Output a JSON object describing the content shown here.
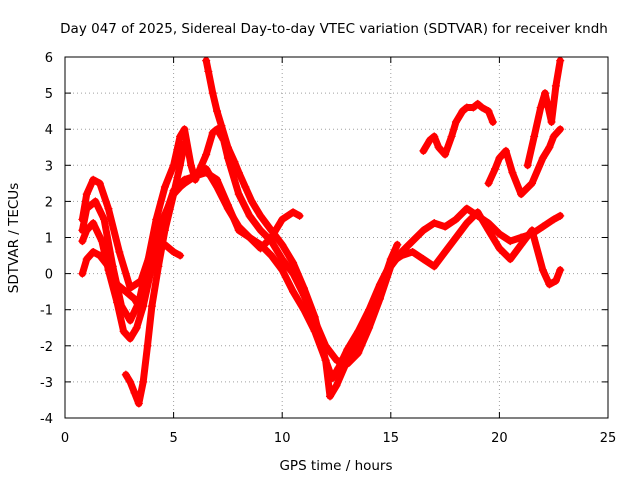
{
  "chart_data": {
    "type": "scatter",
    "title": "Day 047 of 2025, Sidereal Day-to-day VTEC variation (SDTVAR) for receiver kndh",
    "xlabel": "GPS time / hours",
    "ylabel": "SDTVAR / TECUs",
    "xlim": [
      0,
      25
    ],
    "ylim": [
      -4,
      6
    ],
    "xticks": [
      "0",
      "5",
      "10",
      "15",
      "20",
      "25"
    ],
    "yticks": [
      "-4",
      "-3",
      "-2",
      "-1",
      "0",
      "1",
      "2",
      "3",
      "4",
      "5",
      "6"
    ],
    "grid": true,
    "marker": "+",
    "color": "#ff0000",
    "series": [
      {
        "x": [
          0.8,
          1.0,
          1.3,
          1.6,
          2.0,
          2.5,
          3.0,
          3.5,
          4.0,
          4.5,
          5.0,
          5.3,
          5.5,
          6.0,
          6.5,
          7.0,
          7.5,
          8.0,
          8.5,
          9.0,
          9.5,
          10.0,
          10.5,
          10.8
        ],
        "y": [
          1.5,
          2.2,
          2.6,
          2.5,
          1.8,
          0.6,
          -0.4,
          -0.2,
          0.7,
          1.5,
          2.2,
          2.4,
          2.5,
          2.7,
          2.8,
          2.6,
          1.9,
          1.2,
          1.0,
          0.7,
          1.0,
          1.5,
          1.7,
          1.6
        ]
      },
      {
        "x": [
          0.8,
          1.0,
          1.4,
          1.8,
          2.2,
          2.6,
          3.0,
          3.4,
          3.8,
          4.2,
          4.6,
          5.0,
          5.3,
          5.5,
          5.8,
          6.0,
          6.5,
          6.8,
          7.0,
          7.3,
          7.5,
          8.0,
          8.5,
          9.0,
          9.5,
          10.0,
          10.5,
          11.0,
          11.5,
          12.0,
          12.5,
          13.0,
          13.5,
          14.0,
          14.5,
          15.0,
          15.5,
          16.0,
          16.5,
          17.0,
          17.5,
          18.0,
          18.5,
          19.0,
          19.5,
          20.0,
          20.5,
          21.0,
          21.5,
          22.0,
          22.5,
          22.8
        ],
        "y": [
          1.2,
          1.8,
          2.0,
          1.5,
          0.2,
          -0.9,
          -1.3,
          -0.8,
          0.3,
          1.5,
          2.4,
          3.0,
          3.8,
          4.0,
          3.0,
          2.6,
          3.3,
          3.9,
          4.0,
          3.7,
          3.2,
          2.2,
          1.6,
          1.2,
          0.9,
          0.4,
          0.0,
          -0.6,
          -1.3,
          -2.0,
          -2.4,
          -2.5,
          -2.2,
          -1.5,
          -0.7,
          0.2,
          0.6,
          0.9,
          1.2,
          1.4,
          1.3,
          1.5,
          1.8,
          1.6,
          1.4,
          1.1,
          0.9,
          1.0,
          1.1,
          1.3,
          1.5,
          1.6
        ]
      },
      {
        "x": [
          0.8,
          1.0,
          1.3,
          1.7,
          2.0,
          2.4,
          2.7,
          3.0,
          3.3,
          3.6,
          4.0,
          4.5,
          5.0,
          5.5,
          6.0,
          6.5,
          7.0,
          7.5,
          8.0,
          8.5,
          9.0,
          9.5,
          10.0,
          10.5,
          11.0,
          11.5,
          12.0,
          12.3,
          12.6,
          13.0,
          13.5,
          14.0,
          14.5,
          15.0,
          15.5,
          16.0,
          16.5,
          17.0,
          17.5,
          18.0,
          18.5,
          19.0,
          19.5,
          20.0,
          20.5,
          21.0,
          21.5,
          22.0,
          22.3,
          22.6,
          22.8
        ],
        "y": [
          0.9,
          1.2,
          1.4,
          0.9,
          0.1,
          -0.8,
          -1.6,
          -1.8,
          -1.5,
          -0.9,
          0.2,
          1.4,
          2.3,
          2.6,
          2.7,
          2.9,
          2.4,
          1.8,
          1.3,
          1.0,
          0.8,
          0.5,
          0.1,
          -0.5,
          -1.0,
          -1.6,
          -2.4,
          -2.9,
          -2.6,
          -2.1,
          -1.6,
          -1.0,
          -0.3,
          0.3,
          0.5,
          0.6,
          0.4,
          0.2,
          0.6,
          1.0,
          1.4,
          1.7,
          1.2,
          0.7,
          0.4,
          0.8,
          1.2,
          0.1,
          -0.3,
          -0.2,
          0.1
        ]
      },
      {
        "x": [
          0.8,
          1.0,
          1.3,
          1.6,
          2.0,
          2.4,
          2.8,
          3.0,
          3.2,
          3.4,
          3.6,
          3.8,
          4.0,
          4.3,
          4.6,
          5.0,
          5.3
        ],
        "y": [
          0.0,
          0.4,
          0.6,
          0.5,
          0.2,
          -0.3,
          -0.5,
          -0.6,
          -0.7,
          -0.9,
          -0.6,
          -0.1,
          0.5,
          0.7,
          0.8,
          0.6,
          0.5
        ]
      },
      {
        "x": [
          2.8,
          3.0,
          3.2,
          3.4,
          3.6,
          3.8,
          4.0,
          4.3,
          4.6,
          5.0,
          5.3,
          5.5
        ],
        "y": [
          -2.8,
          -3.0,
          -3.3,
          -3.6,
          -3.0,
          -2.0,
          -0.9,
          0.2,
          1.2,
          2.2,
          3.0,
          3.6
        ]
      },
      {
        "x": [
          6.5,
          6.6,
          6.8,
          7.0,
          7.2,
          7.5,
          7.8,
          8.0,
          8.3,
          8.6,
          9.0,
          9.5,
          10.0,
          10.5,
          11.0,
          11.5,
          12.0,
          12.2,
          12.5,
          13.0,
          13.5,
          14.0,
          14.5,
          15.0,
          15.3
        ],
        "y": [
          5.9,
          5.6,
          5.0,
          4.5,
          4.1,
          3.5,
          3.1,
          2.8,
          2.4,
          2.0,
          1.6,
          1.2,
          0.8,
          0.3,
          -0.4,
          -1.2,
          -2.4,
          -3.4,
          -3.1,
          -2.4,
          -1.8,
          -1.1,
          -0.5,
          0.4,
          0.8
        ]
      },
      {
        "x": [
          16.5,
          16.8,
          17.0,
          17.2,
          17.5,
          17.8,
          18.0,
          18.3,
          18.5,
          18.8,
          19.0,
          19.2,
          19.5,
          19.7
        ],
        "y": [
          3.4,
          3.7,
          3.8,
          3.5,
          3.3,
          3.8,
          4.2,
          4.5,
          4.6,
          4.6,
          4.7,
          4.6,
          4.5,
          4.2
        ]
      },
      {
        "x": [
          19.5,
          19.8,
          20.0,
          20.3,
          20.6,
          21.0,
          21.5,
          22.0,
          22.3,
          22.5,
          22.8
        ],
        "y": [
          2.5,
          2.9,
          3.2,
          3.4,
          2.8,
          2.2,
          2.5,
          3.2,
          3.5,
          3.8,
          4.0
        ]
      },
      {
        "x": [
          21.3,
          21.6,
          21.9,
          22.1,
          22.4,
          22.6,
          22.8
        ],
        "y": [
          3.0,
          3.8,
          4.6,
          5.0,
          4.2,
          5.2,
          5.9
        ]
      }
    ]
  }
}
